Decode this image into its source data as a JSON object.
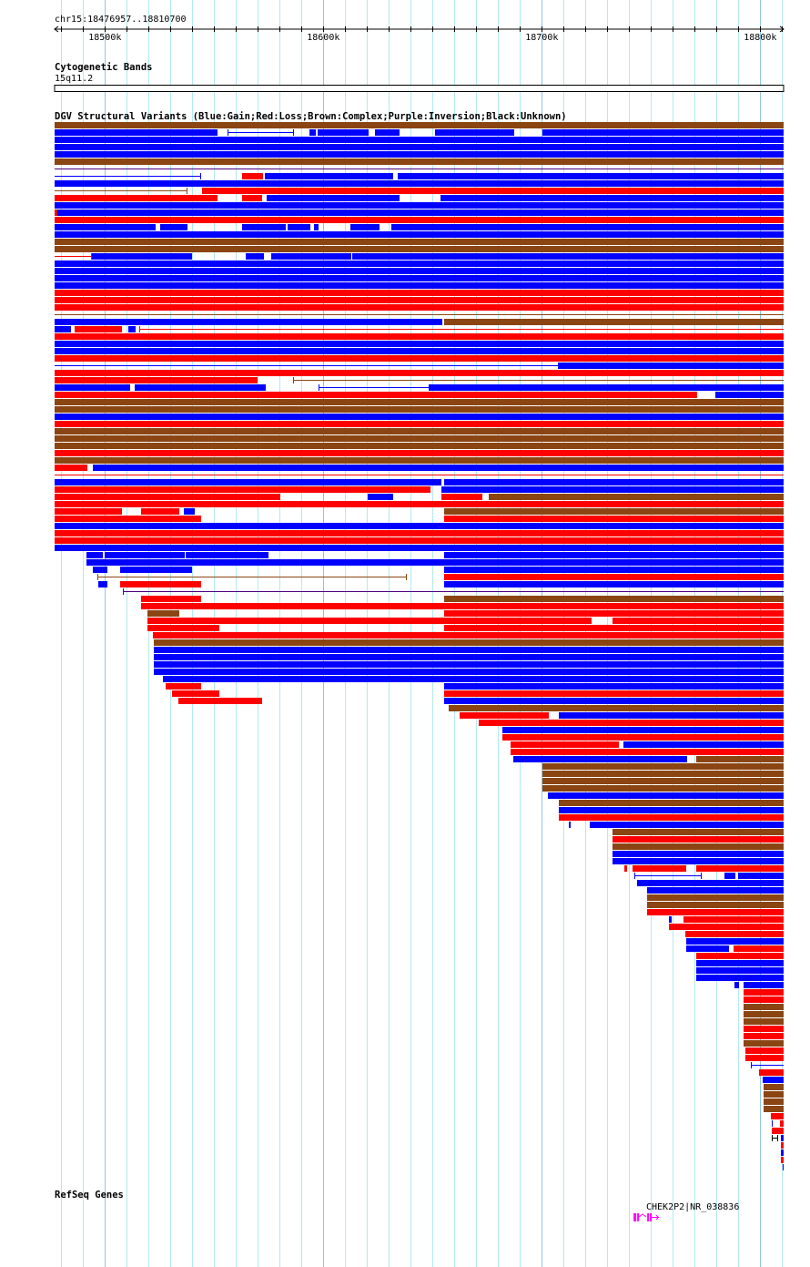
{
  "ruler": {
    "region_label": "chr15:18476957..18810700",
    "view_start_kb": 18476.957,
    "view_end_kb": 18810.7,
    "ticks": [
      {
        "kb": 18500,
        "label": "18500k"
      },
      {
        "kb": 18600,
        "label": "18600k"
      },
      {
        "kb": 18700,
        "label": "18700k"
      },
      {
        "kb": 18800,
        "label": "18800k"
      }
    ]
  },
  "cytoband": {
    "title": "Cytogenetic Bands",
    "band": "15q11.2"
  },
  "dgv": {
    "title": "DGV Structural Variants (Blue:Gain;Red:Loss;Brown:Complex;Purple:Inversion;Black:Unknown)",
    "colors": {
      "b": "#0000ff",
      "r": "#ff0000",
      "n": "#8b4513",
      "p": "#4b0082",
      "k": "#000000"
    },
    "rows": [
      [
        [
          18477.0,
          18810.7,
          "n"
        ]
      ],
      [
        [
          18477.0,
          18551.6,
          "b"
        ],
        [
          18556.2,
          18586.6,
          "bl"
        ],
        [
          18593.7,
          18596.6,
          "b"
        ],
        [
          18597.4,
          18620.8,
          "b"
        ],
        [
          18623.7,
          18634.9,
          "b"
        ],
        [
          18651.2,
          18687.4,
          "b"
        ],
        [
          18700.3,
          18810.7,
          "b"
        ]
      ],
      [
        [
          18477.0,
          18810.7,
          "b"
        ]
      ],
      [
        [
          18477.0,
          18810.7,
          "b"
        ]
      ],
      [
        [
          18477.0,
          18810.7,
          "b"
        ]
      ],
      [
        [
          18477.0,
          18810.7,
          "n"
        ]
      ],
      [
        [
          18477.0,
          18810.7,
          "pl"
        ]
      ],
      [
        [
          18477.0,
          18544.1,
          "bl"
        ],
        [
          18562.8,
          18572.4,
          "r"
        ],
        [
          18573.2,
          18632.0,
          "b"
        ],
        [
          18634.1,
          18810.7,
          "b"
        ]
      ],
      [
        [
          18477.0,
          18810.7,
          "b"
        ]
      ],
      [
        [
          18477.0,
          18537.8,
          "nl"
        ],
        [
          18544.5,
          18810.7,
          "r"
        ]
      ],
      [
        [
          18477.0,
          18551.6,
          "r"
        ],
        [
          18562.8,
          18572.0,
          "r"
        ],
        [
          18574.1,
          18634.9,
          "b"
        ],
        [
          18653.7,
          18810.7,
          "b"
        ]
      ],
      [
        [
          18477.0,
          18810.7,
          "b"
        ]
      ],
      [
        [
          18477.0,
          18478.2,
          "r"
        ],
        [
          18478.2,
          18810.7,
          "b"
        ]
      ],
      [
        [
          18477.0,
          18810.7,
          "r"
        ]
      ],
      [
        [
          18477.0,
          18523.3,
          "b"
        ],
        [
          18525.3,
          18537.8,
          "b"
        ],
        [
          18562.8,
          18582.8,
          "b"
        ],
        [
          18583.7,
          18594.1,
          "b"
        ],
        [
          18595.8,
          18597.8,
          "b"
        ],
        [
          18612.4,
          18625.8,
          "b"
        ],
        [
          18631.2,
          18810.7,
          "b"
        ]
      ],
      [
        [
          18477.0,
          18810.7,
          "b"
        ]
      ],
      [
        [
          18477.0,
          18810.7,
          "n"
        ]
      ],
      [
        [
          18477.0,
          18810.7,
          "n"
        ]
      ],
      [
        [
          18477.0,
          18494.1,
          "rl"
        ],
        [
          18494.1,
          18539.9,
          "b"
        ],
        [
          18564.5,
          18572.8,
          "b"
        ],
        [
          18576.2,
          18612.8,
          "b"
        ],
        [
          18613.2,
          18810.7,
          "b"
        ]
      ],
      [
        [
          18477.0,
          18810.7,
          "b"
        ]
      ],
      [
        [
          18477.0,
          18810.7,
          "b"
        ]
      ],
      [
        [
          18477.0,
          18810.7,
          "b"
        ]
      ],
      [
        [
          18477.0,
          18810.7,
          "b"
        ]
      ],
      [
        [
          18477.0,
          18810.7,
          "r"
        ]
      ],
      [
        [
          18477.0,
          18810.7,
          "r"
        ]
      ],
      [
        [
          18477.0,
          18810.7,
          "r"
        ]
      ],
      [
        [
          18477.0,
          18810.7,
          "nl"
        ]
      ],
      [
        [
          18477.0,
          18654.5,
          "b"
        ],
        [
          18655.3,
          18810.7,
          "n"
        ]
      ],
      [
        [
          18477.0,
          18484.5,
          "b"
        ],
        [
          18486.2,
          18507.8,
          "r"
        ],
        [
          18510.7,
          18514.1,
          "b"
        ],
        [
          18515.8,
          18810.7,
          "rl"
        ]
      ],
      [
        [
          18477.0,
          18810.7,
          "r"
        ]
      ],
      [
        [
          18477.0,
          18810.7,
          "b"
        ]
      ],
      [
        [
          18477.0,
          18810.7,
          "b"
        ]
      ],
      [
        [
          18477.0,
          18810.7,
          "r"
        ]
      ],
      [
        [
          18477.0,
          18707.8,
          "bl"
        ],
        [
          18707.8,
          18810.7,
          "b"
        ]
      ],
      [
        [
          18477.0,
          18810.7,
          "r"
        ]
      ],
      [
        [
          18477.0,
          18569.9,
          "r"
        ],
        [
          18586.2,
          18810.7,
          "nl"
        ]
      ],
      [
        [
          18477.0,
          18511.6,
          "b"
        ],
        [
          18513.7,
          18573.7,
          "b"
        ],
        [
          18597.8,
          18648.7,
          "bl"
        ],
        [
          18648.7,
          18810.7,
          "b"
        ]
      ],
      [
        [
          18477.0,
          18771.2,
          "r"
        ],
        [
          18779.5,
          18810.7,
          "b"
        ]
      ],
      [
        [
          18477.0,
          18810.7,
          "n"
        ]
      ],
      [
        [
          18477.0,
          18810.7,
          "n"
        ]
      ],
      [
        [
          18477.0,
          18810.7,
          "b"
        ]
      ],
      [
        [
          18477.0,
          18810.7,
          "r"
        ]
      ],
      [
        [
          18477.0,
          18810.7,
          "n"
        ]
      ],
      [
        [
          18477.0,
          18810.7,
          "n"
        ]
      ],
      [
        [
          18477.0,
          18810.7,
          "n"
        ]
      ],
      [
        [
          18477.0,
          18810.7,
          "r"
        ]
      ],
      [
        [
          18477.0,
          18810.7,
          "n"
        ]
      ],
      [
        [
          18477.0,
          18492.0,
          "r"
        ],
        [
          18494.5,
          18810.7,
          "b"
        ]
      ],
      [
        [
          18477.0,
          18810.7,
          "rl"
        ]
      ],
      [
        [
          18477.0,
          18654.1,
          "b"
        ],
        [
          18655.3,
          18810.7,
          "b"
        ]
      ],
      [
        [
          18477.0,
          18649.1,
          "r"
        ],
        [
          18654.1,
          18810.7,
          "b"
        ]
      ],
      [
        [
          18477.0,
          18580.3,
          "r"
        ],
        [
          18620.3,
          18632.0,
          "b"
        ],
        [
          18654.1,
          18672.8,
          "r"
        ],
        [
          18675.7,
          18810.7,
          "n"
        ]
      ],
      [
        [
          18477.0,
          18810.7,
          "r"
        ]
      ],
      [
        [
          18477.0,
          18507.8,
          "r"
        ],
        [
          18516.6,
          18534.1,
          "r"
        ],
        [
          18536.2,
          18541.2,
          "b"
        ],
        [
          18655.3,
          18810.7,
          "n"
        ]
      ],
      [
        [
          18477.0,
          18544.1,
          "r"
        ],
        [
          18655.3,
          18810.7,
          "r"
        ]
      ],
      [
        [
          18477.0,
          18810.7,
          "b"
        ]
      ],
      [
        [
          18477.0,
          18810.7,
          "r"
        ]
      ],
      [
        [
          18477.0,
          18810.7,
          "r"
        ]
      ],
      [
        [
          18477.0,
          18810.7,
          "b"
        ]
      ],
      [
        [
          18491.6,
          18499.1,
          "b"
        ],
        [
          18499.9,
          18536.6,
          "b"
        ],
        [
          18537.0,
          18574.9,
          "b"
        ],
        [
          18655.3,
          18810.7,
          "b"
        ]
      ],
      [
        [
          18491.6,
          18810.7,
          "b"
        ]
      ],
      [
        [
          18494.5,
          18501.2,
          "b"
        ],
        [
          18507.0,
          18539.9,
          "b"
        ],
        [
          18655.3,
          18810.7,
          "b"
        ]
      ],
      [
        [
          18496.6,
          18638.2,
          "nl"
        ],
        [
          18655.3,
          18810.7,
          "r"
        ]
      ],
      [
        [
          18497.0,
          18501.2,
          "b"
        ],
        [
          18507.0,
          18544.1,
          "r"
        ],
        [
          18655.3,
          18810.7,
          "b"
        ]
      ],
      [
        [
          18508.2,
          18810.7,
          "pl"
        ]
      ],
      [
        [
          18516.6,
          18544.1,
          "r"
        ],
        [
          18655.3,
          18810.7,
          "n"
        ]
      ],
      [
        [
          18516.6,
          18810.7,
          "r"
        ]
      ],
      [
        [
          18519.5,
          18534.1,
          "n"
        ],
        [
          18655.3,
          18810.7,
          "r"
        ]
      ],
      [
        [
          18519.5,
          18722.8,
          "r"
        ],
        [
          18732.4,
          18810.7,
          "r"
        ]
      ],
      [
        [
          18519.5,
          18552.4,
          "r"
        ],
        [
          18655.3,
          18810.7,
          "r"
        ]
      ],
      [
        [
          18522.0,
          18810.7,
          "r"
        ]
      ],
      [
        [
          18522.4,
          18810.7,
          "n"
        ]
      ],
      [
        [
          18522.4,
          18810.7,
          "b"
        ]
      ],
      [
        [
          18522.4,
          18810.7,
          "b"
        ]
      ],
      [
        [
          18522.4,
          18810.7,
          "b"
        ]
      ],
      [
        [
          18522.4,
          18810.7,
          "b"
        ]
      ],
      [
        [
          18526.6,
          18810.7,
          "b"
        ]
      ],
      [
        [
          18527.8,
          18544.1,
          "r"
        ],
        [
          18655.3,
          18810.7,
          "b"
        ]
      ],
      [
        [
          18530.8,
          18552.4,
          "r"
        ],
        [
          18655.3,
          18810.7,
          "r"
        ]
      ],
      [
        [
          18533.7,
          18572.0,
          "r"
        ],
        [
          18655.3,
          18810.7,
          "b"
        ]
      ],
      [
        [
          18657.4,
          18810.7,
          "n"
        ]
      ],
      [
        [
          18662.4,
          18703.2,
          "r"
        ],
        [
          18707.8,
          18810.7,
          "b"
        ]
      ],
      [
        [
          18671.2,
          18810.7,
          "r"
        ]
      ],
      [
        [
          18682.0,
          18810.7,
          "b"
        ]
      ],
      [
        [
          18682.0,
          18810.7,
          "r"
        ]
      ],
      [
        [
          18685.7,
          18735.3,
          "r"
        ],
        [
          18737.4,
          18810.7,
          "b"
        ]
      ],
      [
        [
          18685.7,
          18810.7,
          "r"
        ]
      ],
      [
        [
          18687.0,
          18766.6,
          "b"
        ],
        [
          18770.7,
          18810.7,
          "n"
        ]
      ],
      [
        [
          18700.3,
          18810.7,
          "n"
        ]
      ],
      [
        [
          18700.3,
          18810.7,
          "n"
        ]
      ],
      [
        [
          18700.3,
          18810.7,
          "n"
        ]
      ],
      [
        [
          18700.3,
          18810.7,
          "n"
        ]
      ],
      [
        [
          18702.8,
          18810.7,
          "b"
        ]
      ],
      [
        [
          18707.8,
          18810.7,
          "n"
        ]
      ],
      [
        [
          18707.8,
          18810.7,
          "b"
        ]
      ],
      [
        [
          18707.8,
          18810.7,
          "r"
        ]
      ],
      [
        [
          18712.4,
          18713.2,
          "b"
        ],
        [
          18722.0,
          18810.7,
          "b"
        ]
      ],
      [
        [
          18732.4,
          18810.7,
          "n"
        ]
      ],
      [
        [
          18732.4,
          18810.7,
          "r"
        ]
      ],
      [
        [
          18732.4,
          18810.7,
          "n"
        ]
      ],
      [
        [
          18732.4,
          18810.7,
          "b"
        ]
      ],
      [
        [
          18732.4,
          18810.7,
          "b"
        ]
      ],
      [
        [
          18737.8,
          18739.1,
          "r"
        ],
        [
          18741.6,
          18766.2,
          "r"
        ],
        [
          18770.7,
          18810.7,
          "r"
        ]
      ],
      [
        [
          18742.4,
          18773.2,
          "bl"
        ],
        [
          18783.7,
          18788.7,
          "b"
        ],
        [
          18789.9,
          18810.7,
          "b"
        ]
      ],
      [
        [
          18743.7,
          18810.7,
          "b"
        ]
      ],
      [
        [
          18748.3,
          18810.7,
          "b"
        ]
      ],
      [
        [
          18748.3,
          18810.7,
          "n"
        ]
      ],
      [
        [
          18748.3,
          18810.7,
          "n"
        ]
      ],
      [
        [
          18748.3,
          18810.7,
          "r"
        ]
      ],
      [
        [
          18758.2,
          18759.5,
          "b"
        ],
        [
          18764.9,
          18810.7,
          "r"
        ]
      ],
      [
        [
          18758.2,
          18810.7,
          "r"
        ]
      ],
      [
        [
          18765.7,
          18810.7,
          "r"
        ]
      ],
      [
        [
          18766.2,
          18810.7,
          "b"
        ]
      ],
      [
        [
          18766.2,
          18785.7,
          "b"
        ],
        [
          18787.8,
          18810.7,
          "r"
        ]
      ],
      [
        [
          18770.7,
          18810.7,
          "r"
        ]
      ],
      [
        [
          18770.7,
          18810.7,
          "b"
        ]
      ],
      [
        [
          18770.7,
          18810.7,
          "b"
        ]
      ],
      [
        [
          18770.7,
          18810.7,
          "b"
        ]
      ],
      [
        [
          18788.2,
          18790.3,
          "b"
        ],
        [
          18792.4,
          18810.7,
          "b"
        ]
      ],
      [
        [
          18792.4,
          18810.7,
          "r"
        ]
      ],
      [
        [
          18792.4,
          18810.7,
          "r"
        ]
      ],
      [
        [
          18792.4,
          18810.7,
          "n"
        ]
      ],
      [
        [
          18792.4,
          18810.7,
          "n"
        ]
      ],
      [
        [
          18792.4,
          18810.7,
          "n"
        ]
      ],
      [
        [
          18792.4,
          18810.7,
          "r"
        ]
      ],
      [
        [
          18792.4,
          18810.7,
          "r"
        ]
      ],
      [
        [
          18792.4,
          18810.7,
          "n"
        ]
      ],
      [
        [
          18793.2,
          18810.7,
          "r"
        ]
      ],
      [
        [
          18793.2,
          18810.7,
          "r"
        ]
      ],
      [
        [
          18795.7,
          18810.7,
          "bl"
        ]
      ],
      [
        [
          18799.5,
          18810.7,
          "r"
        ]
      ],
      [
        [
          18801.2,
          18810.7,
          "b"
        ]
      ],
      [
        [
          18801.6,
          18810.7,
          "n"
        ]
      ],
      [
        [
          18801.6,
          18810.7,
          "n"
        ]
      ],
      [
        [
          18801.6,
          18810.7,
          "n"
        ]
      ],
      [
        [
          18801.6,
          18810.7,
          "n"
        ]
      ],
      [
        [
          18804.9,
          18810.7,
          "r"
        ]
      ],
      [
        [
          18805.3,
          18805.7,
          "b"
        ],
        [
          18809.1,
          18810.7,
          "r"
        ]
      ],
      [
        [
          18805.3,
          18810.7,
          "r"
        ]
      ],
      [
        [
          18805.3,
          18808.2,
          "kl"
        ],
        [
          18809.5,
          18810.7,
          "b"
        ]
      ],
      [
        [
          18809.5,
          18810.7,
          "r"
        ]
      ],
      [
        [
          18809.5,
          18810.7,
          "b"
        ]
      ],
      [
        [
          18809.5,
          18810.7,
          "r"
        ]
      ],
      [
        [
          18810.3,
          18810.7,
          "b"
        ]
      ]
    ]
  },
  "refseq": {
    "title": "RefSeq Genes",
    "genes": [
      {
        "label": "CHEK2P2|NR_038836",
        "start_kb": 18742.0,
        "end_kb": 18753.5,
        "color": "#ff00ff"
      }
    ]
  }
}
